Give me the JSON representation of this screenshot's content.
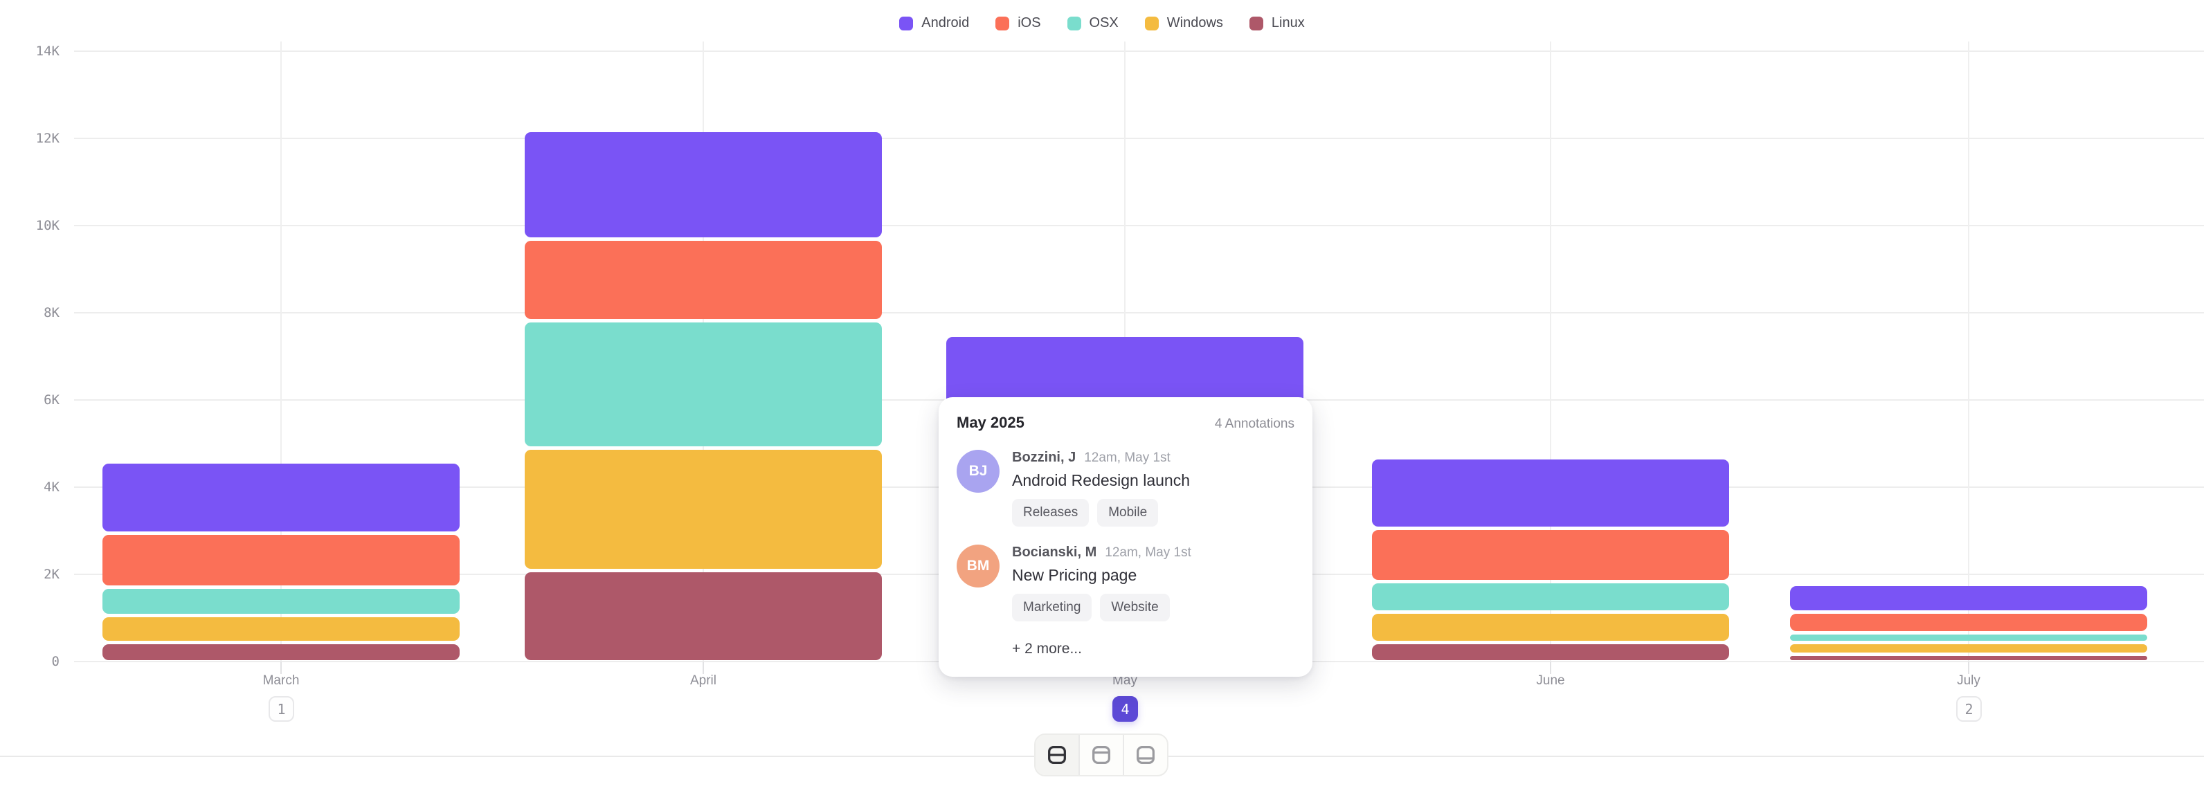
{
  "chart_data": {
    "type": "stacked_bar",
    "title": "",
    "categories": [
      "March",
      "April",
      "May",
      "June",
      "July"
    ],
    "series": [
      {
        "name": "Android",
        "color": "#7A54F5",
        "values": [
          1600,
          2450,
          2500,
          1570,
          590
        ]
      },
      {
        "name": "iOS",
        "color": "#FB7058",
        "values": [
          1230,
          1870,
          1800,
          1220,
          480
        ]
      },
      {
        "name": "OSX",
        "color": "#7ADDCD",
        "values": [
          650,
          2920,
          1300,
          710,
          220
        ]
      },
      {
        "name": "Windows",
        "color": "#F4BB40",
        "values": [
          630,
          2810,
          1200,
          690,
          270
        ]
      },
      {
        "name": "Linux",
        "color": "#AE5869",
        "values": [
          430,
          2090,
          640,
          440,
          170
        ]
      }
    ],
    "y_ticks": [
      "0",
      "2K",
      "4K",
      "6K",
      "8K",
      "10K",
      "12K",
      "14K"
    ],
    "y_tick_values": [
      0,
      2000,
      4000,
      6000,
      8000,
      10000,
      12000,
      14000
    ],
    "ylim": [
      0,
      14000
    ],
    "grid": "on",
    "legend_position": "top",
    "annotations_per_category": [
      1,
      0,
      4,
      0,
      2
    ],
    "selected_category": "May",
    "selected_badge_color": "#5C49D6"
  },
  "tooltip": {
    "title": "May 2025",
    "count_label": "4 Annotations",
    "items": [
      {
        "initials": "BJ",
        "avatar_color": "#A9A4F0",
        "author": "Bozzini, J",
        "time": "12am, May 1st",
        "text": "Android Redesign launch",
        "tags": [
          "Releases",
          "Mobile"
        ]
      },
      {
        "initials": "BM",
        "avatar_color": "#F2A380",
        "author": "Bocianski, M",
        "time": "12am, May 1st",
        "text": "New Pricing page",
        "tags": [
          "Marketing",
          "Website"
        ]
      }
    ],
    "more_label": "+ 2 more..."
  },
  "footer": {
    "segments": [
      {
        "name": "annotation-position-middle",
        "active": true
      },
      {
        "name": "annotation-position-top",
        "active": false
      },
      {
        "name": "annotation-position-bottom",
        "active": false
      }
    ]
  }
}
